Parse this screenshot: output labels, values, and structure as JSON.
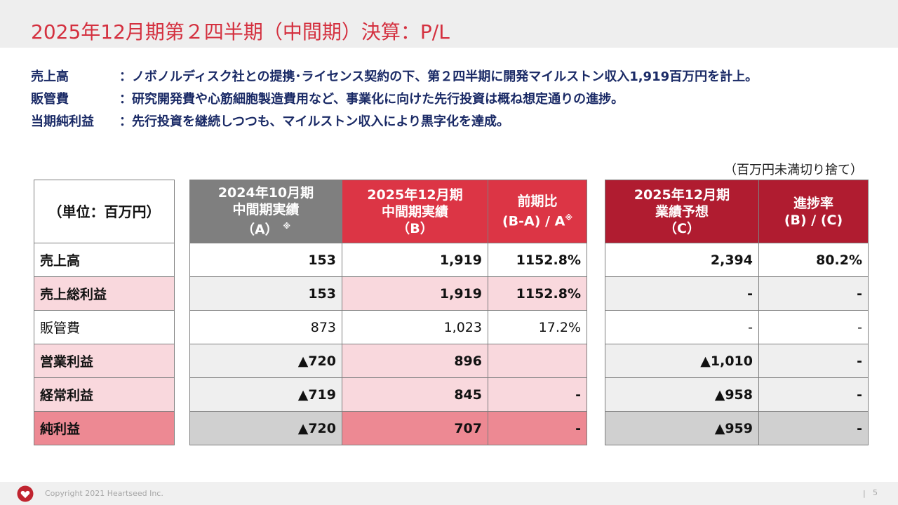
{
  "title": "2025年12月期第２四半期（中間期）決算：P/L",
  "summary": [
    {
      "key": "売上高",
      "text": "：ノボノルディスク社との提携･ライセンス契約の下、第２四半期に開発マイルストン収入1,919百万円を計上。"
    },
    {
      "key": "販管費",
      "text": "：研究開発費や心筋細胞製造費用など、事業化に向けた先行投資は概ね想定通りの進捗。"
    },
    {
      "key": "当期純利益",
      "text": "：先行投資を継続しつつも、マイルストン収入により黒字化を達成。"
    }
  ],
  "unit_note": "（百万円未満切り捨て）",
  "table": {
    "unit_label": "（単位：百万円）",
    "headers": {
      "a": {
        "line1": "2024年10月期",
        "line2": "中間期実績",
        "line3": "（A）",
        "mark": "※"
      },
      "b": {
        "line1": "2025年12月期",
        "line2": "中間期実績",
        "line3": "（B）"
      },
      "ratio": {
        "line1": "前期比",
        "line2": "(B-A) / A",
        "mark": "※"
      },
      "c": {
        "line1": "2025年12月期",
        "line2": "業績予想",
        "line3": "（C）"
      },
      "progress": {
        "line1": "進捗率",
        "line2": "(B) / (C)"
      }
    },
    "rows": [
      {
        "label": "売上高",
        "a": "153",
        "b": "1,919",
        "ratio": "1152.8%",
        "c": "2,394",
        "progress": "80.2%"
      },
      {
        "label": "売上総利益",
        "a": "153",
        "b": "1,919",
        "ratio": "1152.8%",
        "c": "-",
        "progress": "-"
      },
      {
        "label": "販管費",
        "a": "873",
        "b": "1,023",
        "ratio": "17.2%",
        "c": "-",
        "progress": "-"
      },
      {
        "label": "営業利益",
        "a": "▲720",
        "b": "896",
        "ratio": "",
        "c": "▲1,010",
        "progress": "-"
      },
      {
        "label": "経常利益",
        "a": "▲719",
        "b": "845",
        "ratio": "-",
        "c": "▲958",
        "progress": "-"
      },
      {
        "label": "純利益",
        "a": "▲720",
        "b": "707",
        "ratio": "-",
        "c": "▲959",
        "progress": "-"
      }
    ]
  },
  "footer": {
    "copyright": "Copyright 2021 Heartseed Inc.",
    "separator": "|",
    "page": "5",
    "logo_icon": "heart-logo-icon"
  },
  "colors": {
    "title": "#d4303f",
    "summary_text": "#1a2a66",
    "header_a": "#7f7f7f",
    "header_b": "#dc3545",
    "header_c": "#b01c30"
  }
}
